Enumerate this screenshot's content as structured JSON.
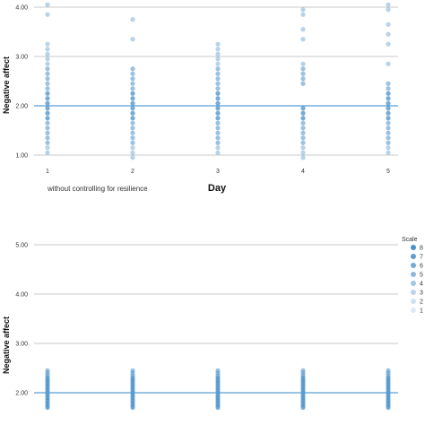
{
  "chart_data": [
    {
      "type": "scatter",
      "ylabel": "Negative affect",
      "xlabel": "Day",
      "caption": "without controlling for resilience",
      "ylim": [
        0.8,
        4.1
      ],
      "y_ticks": [
        "1.00",
        "2.00",
        "3.00",
        "4.00"
      ],
      "x_ticks": [
        "1",
        "2",
        "3",
        "4",
        "5"
      ],
      "reference_line": 2.0,
      "grid": "horizontal",
      "points": [
        {
          "day": 1,
          "y": [
            1.05,
            1.15,
            1.25,
            1.35,
            1.45,
            1.55,
            1.65,
            1.75,
            1.85,
            1.95,
            2.05,
            2.15,
            2.25,
            2.35,
            2.45,
            2.55,
            2.65,
            2.75,
            2.85,
            2.95,
            3.05,
            3.15,
            3.25,
            3.85,
            4.05
          ]
        },
        {
          "day": 2,
          "y": [
            0.95,
            1.05,
            1.15,
            1.25,
            1.35,
            1.45,
            1.55,
            1.65,
            1.75,
            1.85,
            1.95,
            2.05,
            2.15,
            2.25,
            2.35,
            2.45,
            2.55,
            2.65,
            2.75,
            3.35,
            3.75
          ]
        },
        {
          "day": 3,
          "y": [
            1.05,
            1.15,
            1.25,
            1.35,
            1.45,
            1.55,
            1.65,
            1.75,
            1.85,
            1.95,
            2.05,
            2.15,
            2.25,
            2.35,
            2.45,
            2.55,
            2.65,
            2.75,
            2.85,
            2.95,
            3.05,
            3.15,
            3.25
          ]
        },
        {
          "day": 4,
          "y": [
            0.95,
            1.05,
            1.15,
            1.25,
            1.35,
            1.45,
            1.55,
            1.65,
            1.75,
            1.85,
            1.95,
            2.45,
            2.55,
            2.65,
            2.75,
            2.85,
            3.35,
            3.55,
            3.85,
            3.95
          ]
        },
        {
          "day": 5,
          "y": [
            1.05,
            1.15,
            1.25,
            1.35,
            1.45,
            1.55,
            1.65,
            1.75,
            1.85,
            1.95,
            2.05,
            2.15,
            2.25,
            2.35,
            2.45,
            2.85,
            3.25,
            3.45,
            3.65,
            3.95,
            4.05
          ]
        }
      ]
    },
    {
      "type": "scatter",
      "ylabel": "Negative affect",
      "ylim": [
        1.5,
        5.2
      ],
      "y_ticks": [
        "2.00",
        "3.00",
        "4.00",
        "5.00"
      ],
      "reference_line": 2.0,
      "grid": "horizontal",
      "legend": {
        "title": "Scale",
        "position": "right",
        "items": [
          "8",
          "7",
          "6",
          "5",
          "4",
          "3",
          "2",
          "1"
        ]
      },
      "points": [
        {
          "day": 1,
          "y": [
            1.7,
            1.75,
            1.8,
            1.85,
            1.9,
            1.95,
            2.0,
            2.05,
            2.1,
            2.15,
            2.2,
            2.25,
            2.3,
            2.35,
            2.4,
            2.45
          ]
        },
        {
          "day": 2,
          "y": [
            1.7,
            1.75,
            1.8,
            1.85,
            1.9,
            1.95,
            2.0,
            2.05,
            2.1,
            2.15,
            2.2,
            2.25,
            2.3,
            2.35,
            2.4,
            2.45
          ]
        },
        {
          "day": 3,
          "y": [
            1.7,
            1.75,
            1.8,
            1.85,
            1.9,
            1.95,
            2.0,
            2.05,
            2.1,
            2.15,
            2.2,
            2.25,
            2.3,
            2.35,
            2.4,
            2.45
          ]
        },
        {
          "day": 4,
          "y": [
            1.7,
            1.75,
            1.8,
            1.85,
            1.9,
            1.95,
            2.0,
            2.05,
            2.1,
            2.15,
            2.2,
            2.25,
            2.3,
            2.35,
            2.4,
            2.45
          ]
        },
        {
          "day": 5,
          "y": [
            1.7,
            1.75,
            1.8,
            1.85,
            1.9,
            1.95,
            2.0,
            2.05,
            2.1,
            2.15,
            2.2,
            2.25,
            2.3,
            2.35,
            2.4,
            2.45
          ]
        }
      ]
    }
  ],
  "colors": {
    "reference_line": "#5a9fd4",
    "gridline": "#b8b8b8",
    "dot_light": "#c3dcef",
    "dot_dark": "#4a90c8"
  }
}
